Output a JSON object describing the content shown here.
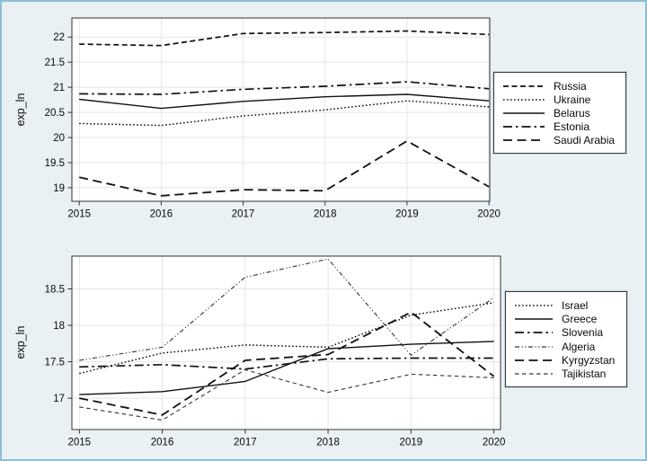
{
  "figure": {
    "ylabel": "exp_ln",
    "background_color": "#eaf1f4",
    "frame_color": "#8fbcd9",
    "plot_background": "#ffffff",
    "gridline_color": "#dde8ee",
    "axis_color": "#333333",
    "line_color": "#111111"
  },
  "chart_data": [
    {
      "type": "line",
      "title": "",
      "xlabel": "",
      "ylabel": "exp_ln",
      "grid": true,
      "legend_position": "right",
      "x": [
        2015,
        2016,
        2017,
        2018,
        2019,
        2020
      ],
      "xtick_labels": [
        "2015",
        "2016",
        "2017",
        "2018",
        "2019",
        "2020"
      ],
      "yticks": [
        19,
        19.5,
        20,
        20.5,
        21,
        21.5,
        22
      ],
      "ytick_labels": [
        "19",
        "19.5",
        "20",
        "20.5",
        "21",
        "21.5",
        "22"
      ],
      "xlim": [
        2014.91,
        2020.01
      ],
      "ylim": [
        18.73,
        22.38
      ],
      "series": [
        {
          "name": "Russia",
          "style": "dash",
          "values": [
            21.86,
            21.83,
            22.07,
            22.09,
            22.12,
            22.05
          ]
        },
        {
          "name": "Ukraine",
          "style": "dot",
          "values": [
            20.28,
            20.24,
            20.43,
            20.55,
            20.73,
            20.61
          ]
        },
        {
          "name": "Belarus",
          "style": "solid",
          "values": [
            20.76,
            20.58,
            20.72,
            20.81,
            20.86,
            20.73
          ]
        },
        {
          "name": "Estonia",
          "style": "dash_dot",
          "values": [
            20.87,
            20.86,
            20.96,
            21.02,
            21.11,
            20.97
          ]
        },
        {
          "name": "Saudi Arabia",
          "style": "longdash",
          "values": [
            19.21,
            18.84,
            18.96,
            18.94,
            19.93,
            19.02
          ]
        }
      ]
    },
    {
      "type": "line",
      "title": "",
      "xlabel": "",
      "ylabel": "exp_ln",
      "grid": true,
      "legend_position": "right",
      "x": [
        2015,
        2016,
        2017,
        2018,
        2019,
        2020
      ],
      "xtick_labels": [
        "2015",
        "2016",
        "2017",
        "2018",
        "2019",
        "2020"
      ],
      "yticks": [
        17,
        17.5,
        18,
        18.5
      ],
      "ytick_labels": [
        "17",
        "17.5",
        "18",
        "18.5"
      ],
      "xlim": [
        2014.91,
        2020.08
      ],
      "ylim": [
        16.57,
        18.95
      ],
      "series": [
        {
          "name": "Israel",
          "style": "dot",
          "values": [
            17.34,
            17.62,
            17.73,
            17.7,
            18.14,
            18.31
          ]
        },
        {
          "name": "Greece",
          "style": "solid",
          "values": [
            17.05,
            17.09,
            17.23,
            17.68,
            17.74,
            17.78
          ]
        },
        {
          "name": "Slovenia",
          "style": "dash_dot",
          "values": [
            17.43,
            17.46,
            17.4,
            17.54,
            17.55,
            17.55
          ]
        },
        {
          "name": "Algeria",
          "style": "dash_dot_dot_fine",
          "values": [
            17.52,
            17.7,
            18.66,
            18.91,
            17.59,
            18.38
          ]
        },
        {
          "name": "Kyrgyzstan",
          "style": "longdash",
          "values": [
            17.0,
            16.77,
            17.52,
            17.6,
            18.18,
            17.3
          ]
        },
        {
          "name": "Tajikistan",
          "style": "shortdash_fine",
          "values": [
            16.88,
            16.7,
            17.39,
            17.08,
            17.33,
            17.28
          ]
        }
      ]
    }
  ]
}
